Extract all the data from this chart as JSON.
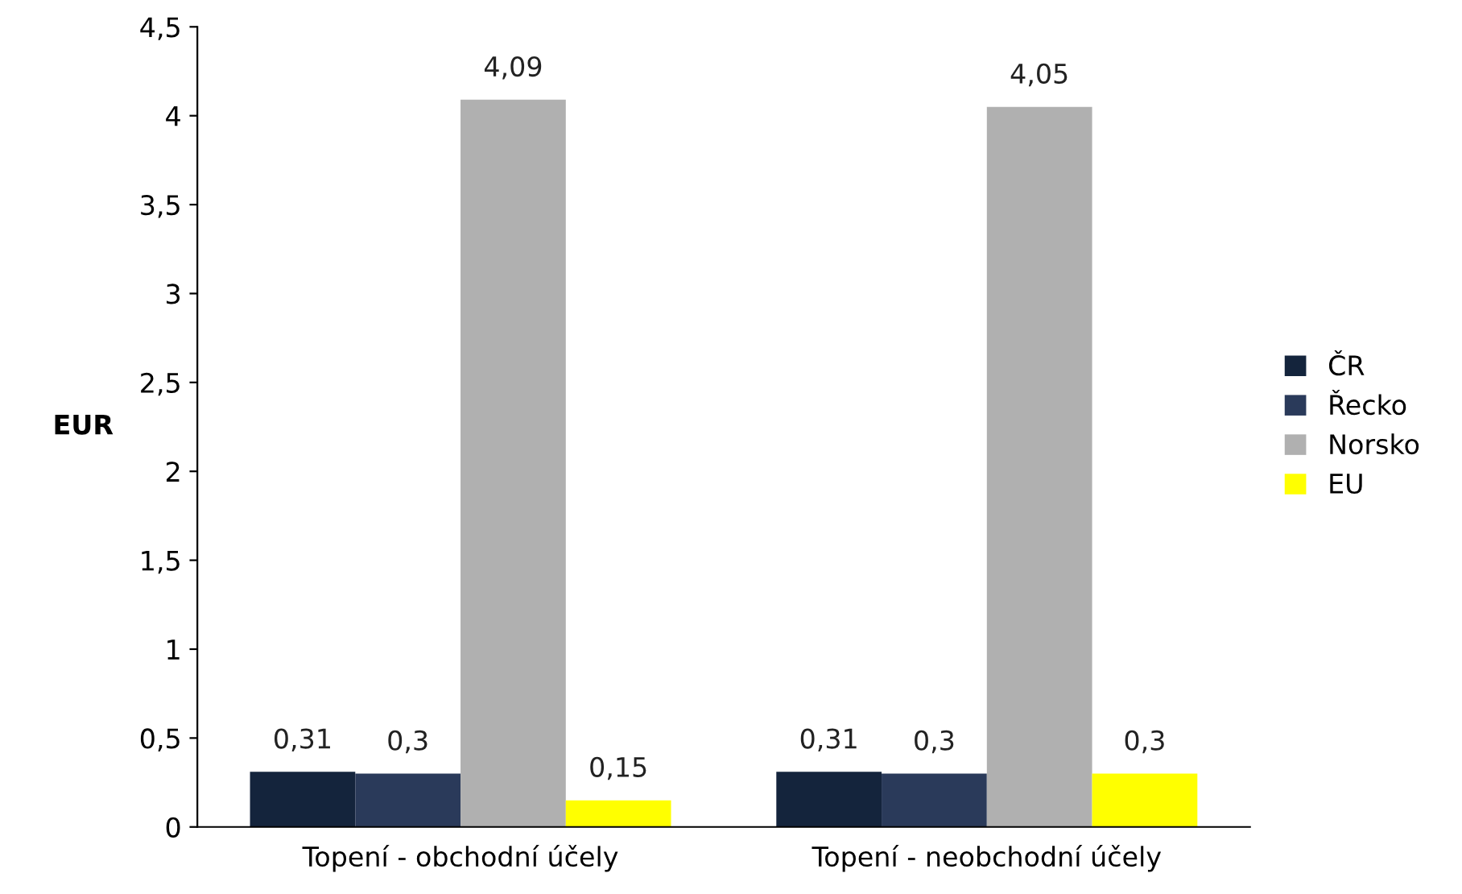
{
  "chart_data": {
    "type": "bar",
    "ylabel": "EUR",
    "categories": [
      "Topení - obchodní účely",
      "Topení - neobchodní účely"
    ],
    "series": [
      {
        "name": "ČR",
        "color": "#14243c",
        "values": [
          0.31,
          0.31
        ],
        "value_labels": [
          "0,31",
          "0,31"
        ]
      },
      {
        "name": "Řecko",
        "color": "#2a3a5a",
        "values": [
          0.3,
          0.3
        ],
        "value_labels": [
          "0,3",
          "0,3"
        ]
      },
      {
        "name": "Norsko",
        "color": "#b0b0b0",
        "values": [
          4.09,
          4.05
        ],
        "value_labels": [
          "4,09",
          "4,05"
        ]
      },
      {
        "name": "EU",
        "color": "#ffff00",
        "values": [
          0.15,
          0.3
        ],
        "value_labels": [
          "0,15",
          "0,3"
        ]
      }
    ],
    "ylim": [
      0,
      4.5
    ],
    "yticks": [
      0,
      {
        "value": 0.5,
        "label": "0,5"
      },
      1,
      {
        "value": 1.5,
        "label": "1,5"
      },
      2,
      {
        "value": 2.5,
        "label": "2,5"
      },
      3,
      {
        "value": 3.5,
        "label": "3,5"
      },
      4,
      {
        "value": 4.5,
        "label": "4,5"
      }
    ],
    "grid": false,
    "legend": "right"
  }
}
